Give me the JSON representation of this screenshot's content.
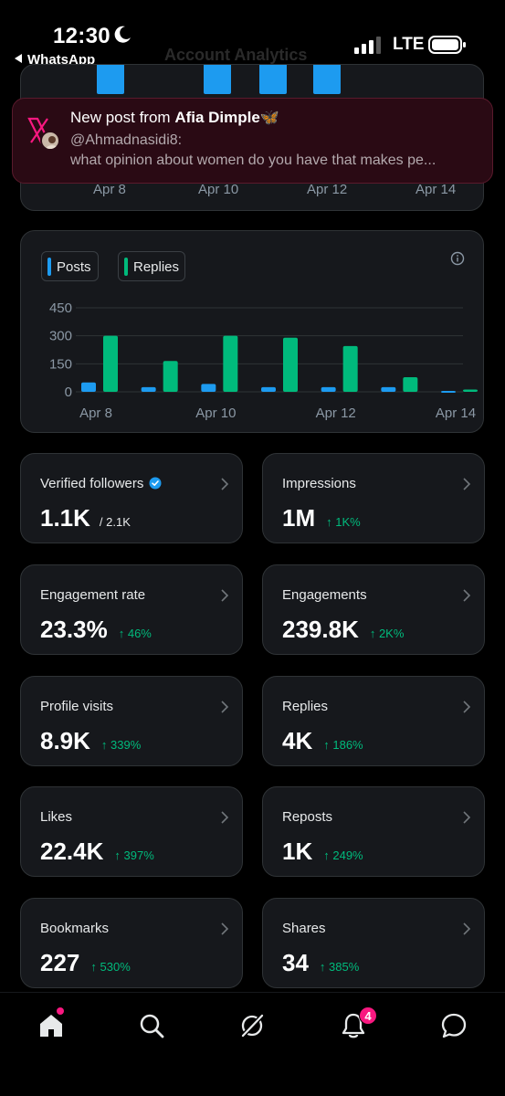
{
  "status_bar": {
    "time": "12:30",
    "back_app": "WhatsApp",
    "network": "LTE"
  },
  "header": {
    "title": "Account Analytics"
  },
  "top_chart": {
    "x_labels": [
      "Apr 8",
      "Apr 10",
      "Apr 12",
      "Apr 14"
    ]
  },
  "notification": {
    "prefix": "New post from ",
    "author": "Afia Dimple",
    "emoji": "🦋",
    "handle": "@Ahmadnasidi8:",
    "text": "what opinion about women do you have that makes pe..."
  },
  "chart_data": {
    "type": "bar",
    "categories": [
      "Apr 8",
      "Apr 9",
      "Apr 10",
      "Apr 11",
      "Apr 12",
      "Apr 13",
      "Apr 14"
    ],
    "x_tick_labels": [
      "Apr 8",
      "Apr 10",
      "Apr 12",
      "Apr 14"
    ],
    "y_ticks": [
      "450",
      "300",
      "150",
      "0"
    ],
    "ylim": [
      0,
      450
    ],
    "series": [
      {
        "name": "Posts",
        "color": "#1d9bf0",
        "values": [
          50,
          25,
          42,
          25,
          25,
          25,
          5
        ]
      },
      {
        "name": "Replies",
        "color": "#00ba7c",
        "values": [
          300,
          165,
          300,
          290,
          245,
          78,
          12
        ]
      }
    ],
    "grid": true,
    "legend": "top-left"
  },
  "stats": [
    {
      "label": "Verified followers",
      "value": "1.1K",
      "sub": "/ 2.1K",
      "change": "",
      "verified": true
    },
    {
      "label": "Impressions",
      "value": "1M",
      "sub": "",
      "change": "↑ 1K%",
      "verified": false
    },
    {
      "label": "Engagement rate",
      "value": "23.3%",
      "sub": "",
      "change": "↑ 46%",
      "verified": false
    },
    {
      "label": "Engagements",
      "value": "239.8K",
      "sub": "",
      "change": "↑ 2K%",
      "verified": false
    },
    {
      "label": "Profile visits",
      "value": "8.9K",
      "sub": "",
      "change": "↑ 339%",
      "verified": false
    },
    {
      "label": "Replies",
      "value": "4K",
      "sub": "",
      "change": "↑ 186%",
      "verified": false
    },
    {
      "label": "Likes",
      "value": "22.4K",
      "sub": "",
      "change": "↑ 397%",
      "verified": false
    },
    {
      "label": "Reposts",
      "value": "1K",
      "sub": "",
      "change": "↑ 249%",
      "verified": false
    },
    {
      "label": "Bookmarks",
      "value": "227",
      "sub": "",
      "change": "↑ 530%",
      "verified": false
    },
    {
      "label": "Shares",
      "value": "34",
      "sub": "",
      "change": "↑ 385%",
      "verified": false
    }
  ],
  "nav": {
    "items": [
      "home-icon",
      "search-icon",
      "grok-icon",
      "notifications-icon",
      "messages-icon"
    ],
    "notification_count": "4"
  },
  "colors": {
    "accent_blue": "#1d9bf0",
    "accent_green": "#00ba7c",
    "brand_pink": "#f91880"
  }
}
